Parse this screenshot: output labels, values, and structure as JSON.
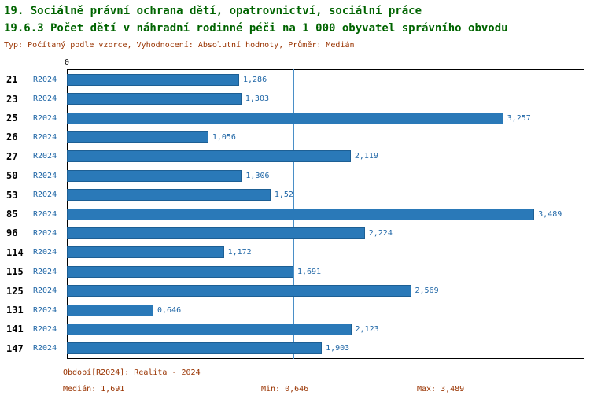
{
  "header": {
    "title_line1": "19. Sociálně právní ochrana dětí, opatrovnictví, sociální práce",
    "title_line2": "19.6.3 Počet dětí v náhradní rodinné péči na 1 000 obyvatel správního obvodu",
    "subtitle": "Typ: Počítaný podle vzorce, Vyhodnocení: Absolutní hodnoty, Průměr: Medián"
  },
  "chart_data": {
    "type": "bar",
    "orientation": "horizontal",
    "title": "19.6.3 Počet dětí v náhradní rodinné péči na 1 000 obyvatel správního obvodu",
    "categories": [
      "21",
      "23",
      "25",
      "26",
      "27",
      "50",
      "53",
      "85",
      "96",
      "114",
      "115",
      "125",
      "131",
      "141",
      "147"
    ],
    "series": [
      {
        "name": "R2024",
        "values": [
          1.286,
          1.303,
          3.257,
          1.056,
          2.119,
          1.306,
          1.52,
          3.489,
          2.224,
          1.172,
          1.691,
          2.569,
          0.646,
          2.123,
          1.903
        ],
        "value_labels": [
          "1,286",
          "1,303",
          "3,257",
          "1,056",
          "2,119",
          "1,306",
          "1,52",
          "3,489",
          "2,224",
          "1,172",
          "1,691",
          "2,569",
          "0,646",
          "2,123",
          "1,903"
        ]
      }
    ],
    "xlim": [
      0,
      3.67
    ],
    "x_axis_tick": "0",
    "median": {
      "value": 1.691,
      "label": "1,691"
    },
    "grid": false,
    "legend_position": "none"
  },
  "footer": {
    "period_label": "Období[R2024]: Realita - 2024",
    "median_label": "Medián: 1,691",
    "min_label": "Min: 0,646",
    "max_label": "Max: 3,489"
  },
  "theme": {
    "title_color": "#006400",
    "subtitle_color": "#993300",
    "footer_color": "#993300",
    "bar_fill": "#2a79b8",
    "bar_border": "#1d5f94",
    "value_color": "#1f66a6",
    "series_label_color": "#1f66a6",
    "median_line_color": "#4a8fc7",
    "axis_color": "#000000"
  }
}
